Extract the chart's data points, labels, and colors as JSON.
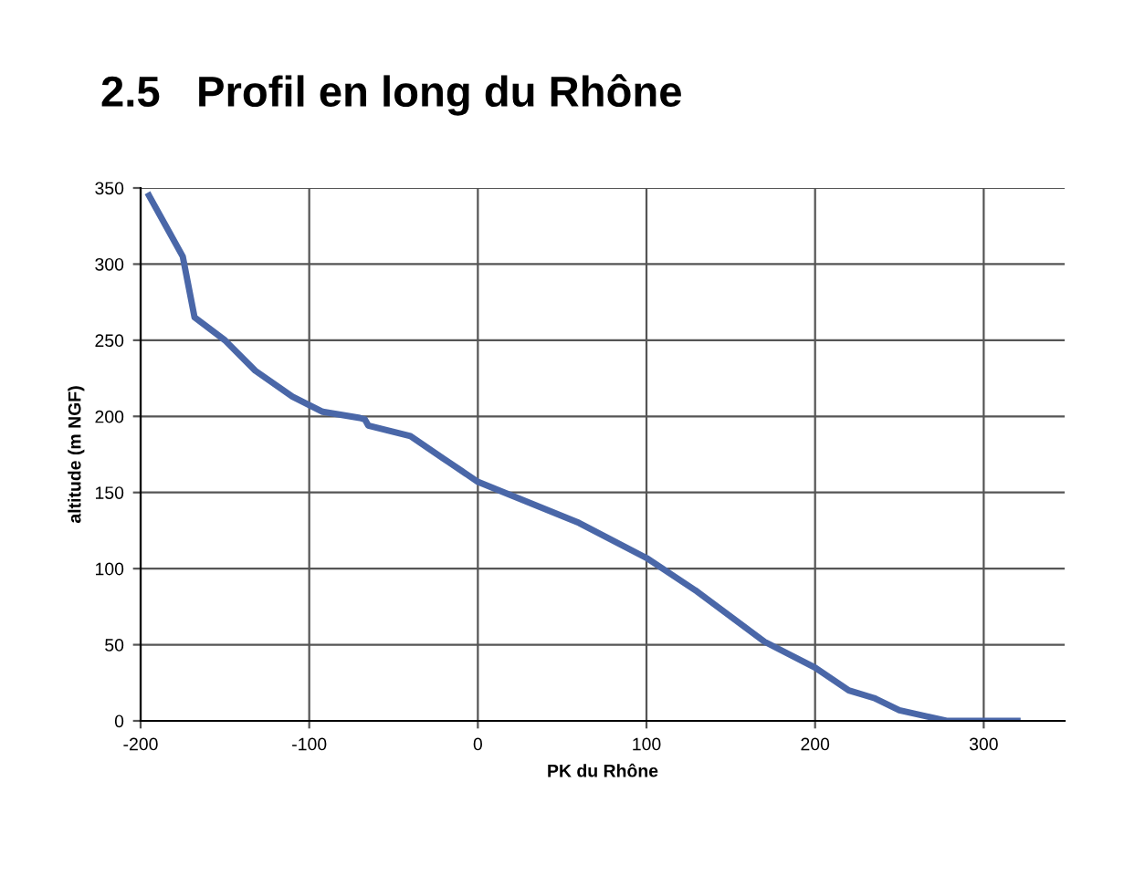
{
  "chart_data": {
    "type": "line",
    "title": "2.5   Profil en long du Rhône",
    "xlabel": "PK du Rhône",
    "ylabel": "altitude (m NGF)",
    "x": [
      -195,
      -175,
      -168,
      -150,
      -132,
      -110,
      -92,
      -70,
      -67,
      -65,
      -40,
      -20,
      0,
      20,
      60,
      100,
      130,
      170,
      200,
      220,
      235,
      250,
      278,
      320
    ],
    "series": [
      {
        "color": "#4a67a8",
        "values": [
          345,
          305,
          265,
          250,
          230,
          213,
          203,
          199,
          198,
          194,
          187,
          172,
          157,
          148,
          130,
          107,
          85,
          52,
          35,
          20,
          15,
          7,
          0,
          0
        ]
      }
    ],
    "xlim": [
      -200,
      348
    ],
    "xticks": [
      -200,
      -100,
      0,
      100,
      200,
      300
    ],
    "ylim": [
      0,
      350
    ],
    "yticks": [
      0,
      50,
      100,
      150,
      200,
      250,
      300,
      350
    ],
    "grid": true,
    "line_style": "solid",
    "marker": "none"
  }
}
